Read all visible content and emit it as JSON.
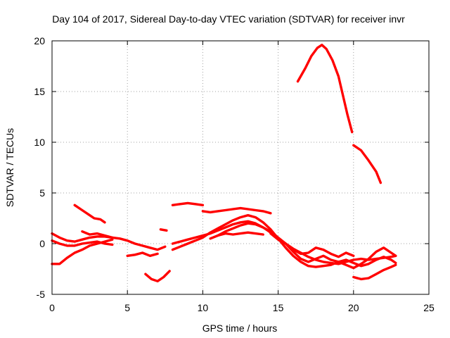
{
  "chart_data": {
    "type": "line",
    "title": "Day 104 of 2017, Sidereal Day-to-day VTEC variation (SDTVAR) for receiver invr",
    "xlabel": "GPS time / hours",
    "ylabel": "SDTVAR / TECUs",
    "xlim": [
      0,
      25
    ],
    "ylim": [
      -5,
      20
    ],
    "xticks": [
      0,
      5,
      10,
      15,
      20,
      25
    ],
    "yticks": [
      -5,
      0,
      5,
      10,
      15,
      20
    ],
    "grid": true,
    "color": "#ff0000",
    "series": [
      {
        "name": "s1",
        "x": [
          1.5,
          2.0,
          2.5,
          2.8,
          3.2,
          3.5
        ],
        "y": [
          3.8,
          3.3,
          2.8,
          2.5,
          2.4,
          2.1
        ]
      },
      {
        "name": "s2",
        "x": [
          0.0,
          0.5,
          1.0,
          1.5,
          2.0,
          2.5,
          3.0,
          3.5,
          4.0,
          4.5,
          5.0,
          5.5,
          6.0,
          6.5,
          7.0,
          7.5
        ],
        "y": [
          1.0,
          0.6,
          0.3,
          0.2,
          0.4,
          0.6,
          0.7,
          0.7,
          0.6,
          0.5,
          0.3,
          0.0,
          -0.2,
          -0.4,
          -0.6,
          -0.3
        ]
      },
      {
        "name": "s3",
        "x": [
          0.0,
          0.5,
          1.0,
          1.5,
          2.0,
          2.5,
          3.0,
          3.5,
          4.0
        ],
        "y": [
          0.3,
          0.0,
          -0.2,
          -0.2,
          0.0,
          0.1,
          0.2,
          0.0,
          -0.1
        ]
      },
      {
        "name": "s4",
        "x": [
          0.0,
          0.5,
          1.0,
          1.5,
          2.0,
          2.5,
          3.0,
          3.5,
          4.0
        ],
        "y": [
          -2.0,
          -2.0,
          -1.4,
          -0.9,
          -0.6,
          -0.2,
          0.0,
          0.2,
          0.4
        ]
      },
      {
        "name": "s5",
        "x": [
          2.0,
          2.5,
          3.0,
          3.5,
          4.0
        ],
        "y": [
          1.2,
          0.9,
          1.0,
          0.8,
          0.6
        ]
      },
      {
        "name": "s6",
        "x": [
          5.0,
          5.5,
          6.0,
          6.5,
          7.0
        ],
        "y": [
          -1.2,
          -1.1,
          -0.9,
          -1.2,
          -1.0
        ]
      },
      {
        "name": "s7",
        "x": [
          6.2,
          6.6,
          7.0,
          7.4,
          7.8
        ],
        "y": [
          -3.0,
          -3.5,
          -3.7,
          -3.3,
          -2.7
        ]
      },
      {
        "name": "s8",
        "x": [
          7.2,
          7.6
        ],
        "y": [
          1.4,
          1.3
        ]
      },
      {
        "name": "s9",
        "x": [
          8.0,
          8.5,
          9.0,
          9.5,
          10.0
        ],
        "y": [
          3.8,
          3.9,
          4.0,
          3.9,
          3.8
        ]
      },
      {
        "name": "s10",
        "x": [
          10.0,
          10.5,
          11.0,
          11.5,
          12.0,
          12.5,
          13.0,
          13.5,
          14.0,
          14.5
        ],
        "y": [
          3.2,
          3.1,
          3.2,
          3.3,
          3.4,
          3.5,
          3.4,
          3.3,
          3.2,
          3.0
        ]
      },
      {
        "name": "s11",
        "x": [
          8.0,
          8.5,
          9.0,
          9.5,
          10.0,
          10.5,
          11.0,
          11.5,
          12.0,
          12.5,
          13.0,
          13.5,
          14.0,
          14.5,
          15.0,
          15.5,
          16.0,
          16.5,
          17.0,
          17.5,
          18.0,
          18.5,
          19.0,
          19.5,
          20.0,
          20.5,
          21.0,
          21.5,
          22.0,
          22.5,
          22.8
        ],
        "y": [
          0.0,
          0.2,
          0.4,
          0.6,
          0.8,
          1.0,
          1.3,
          1.6,
          1.9,
          2.1,
          2.2,
          2.0,
          1.6,
          1.1,
          0.5,
          0.0,
          -0.5,
          -0.9,
          -1.3,
          -1.6,
          -1.8,
          -1.9,
          -2.0,
          -1.8,
          -1.6,
          -1.5,
          -1.6,
          -1.5,
          -1.4,
          -1.3,
          -1.2
        ]
      },
      {
        "name": "s12",
        "x": [
          8.0,
          8.5,
          9.0,
          9.5,
          10.0,
          10.5,
          11.0,
          11.5,
          12.0,
          12.5,
          13.0,
          13.5,
          14.0,
          14.5,
          15.0,
          15.5,
          16.0,
          16.5,
          17.0,
          17.5,
          18.0,
          18.5,
          19.0,
          19.5,
          20.0,
          20.5,
          21.0,
          21.5,
          22.0,
          22.5,
          22.8
        ],
        "y": [
          -0.6,
          -0.3,
          0.0,
          0.3,
          0.6,
          1.1,
          1.5,
          1.9,
          2.3,
          2.6,
          2.8,
          2.6,
          2.1,
          1.4,
          0.5,
          -0.4,
          -1.2,
          -1.8,
          -2.2,
          -2.3,
          -2.2,
          -2.1,
          -1.8,
          -1.6,
          -1.9,
          -2.2,
          -2.0,
          -1.6,
          -1.3,
          -1.6,
          -1.9
        ]
      },
      {
        "name": "s13",
        "x": [
          10.5,
          11.0,
          11.5,
          12.0,
          12.5,
          13.0,
          13.5,
          14.0,
          14.5,
          15.0,
          15.5,
          16.0,
          16.5,
          17.0,
          17.5,
          18.0,
          18.5,
          19.0,
          19.5,
          20.0
        ],
        "y": [
          0.5,
          0.8,
          1.2,
          1.5,
          1.8,
          2.0,
          1.9,
          1.6,
          1.2,
          0.6,
          0.0,
          -0.6,
          -1.0,
          -0.9,
          -0.4,
          -0.6,
          -1.0,
          -1.3,
          -0.9,
          -1.2
        ]
      },
      {
        "name": "s14",
        "x": [
          14.5,
          15.0,
          15.5,
          16.0,
          16.5,
          17.0,
          17.5,
          18.0,
          18.5,
          19.0,
          19.5,
          20.0,
          20.5,
          21.0,
          21.5,
          22.0,
          22.5,
          22.8
        ],
        "y": [
          1.0,
          0.4,
          0.0,
          -0.8,
          -1.5,
          -1.8,
          -1.5,
          -1.2,
          -1.6,
          -1.8,
          -2.1,
          -2.4,
          -2.0,
          -1.5,
          -0.8,
          -0.4,
          -0.9,
          -1.2
        ]
      },
      {
        "name": "s15",
        "x": [
          20.0,
          20.5,
          21.0,
          21.5,
          22.0,
          22.5,
          22.8
        ],
        "y": [
          -3.3,
          -3.5,
          -3.4,
          -3.0,
          -2.6,
          -2.3,
          -2.1
        ]
      },
      {
        "name": "s16",
        "x": [
          16.3,
          16.8,
          17.2,
          17.6,
          17.9,
          18.2,
          18.6,
          19.0,
          19.3,
          19.6,
          19.9
        ],
        "y": [
          16.0,
          17.3,
          18.5,
          19.3,
          19.6,
          19.2,
          18.1,
          16.5,
          14.6,
          12.7,
          11.0
        ]
      },
      {
        "name": "s17",
        "x": [
          20.0,
          20.5,
          21.0,
          21.5,
          21.8
        ],
        "y": [
          9.7,
          9.2,
          8.2,
          7.1,
          6.0
        ]
      },
      {
        "name": "s18",
        "x": [
          11.0,
          11.5,
          12.0,
          12.5,
          13.0,
          13.5,
          14.0
        ],
        "y": [
          0.8,
          1.0,
          0.9,
          1.0,
          1.1,
          1.0,
          0.9
        ]
      }
    ]
  }
}
